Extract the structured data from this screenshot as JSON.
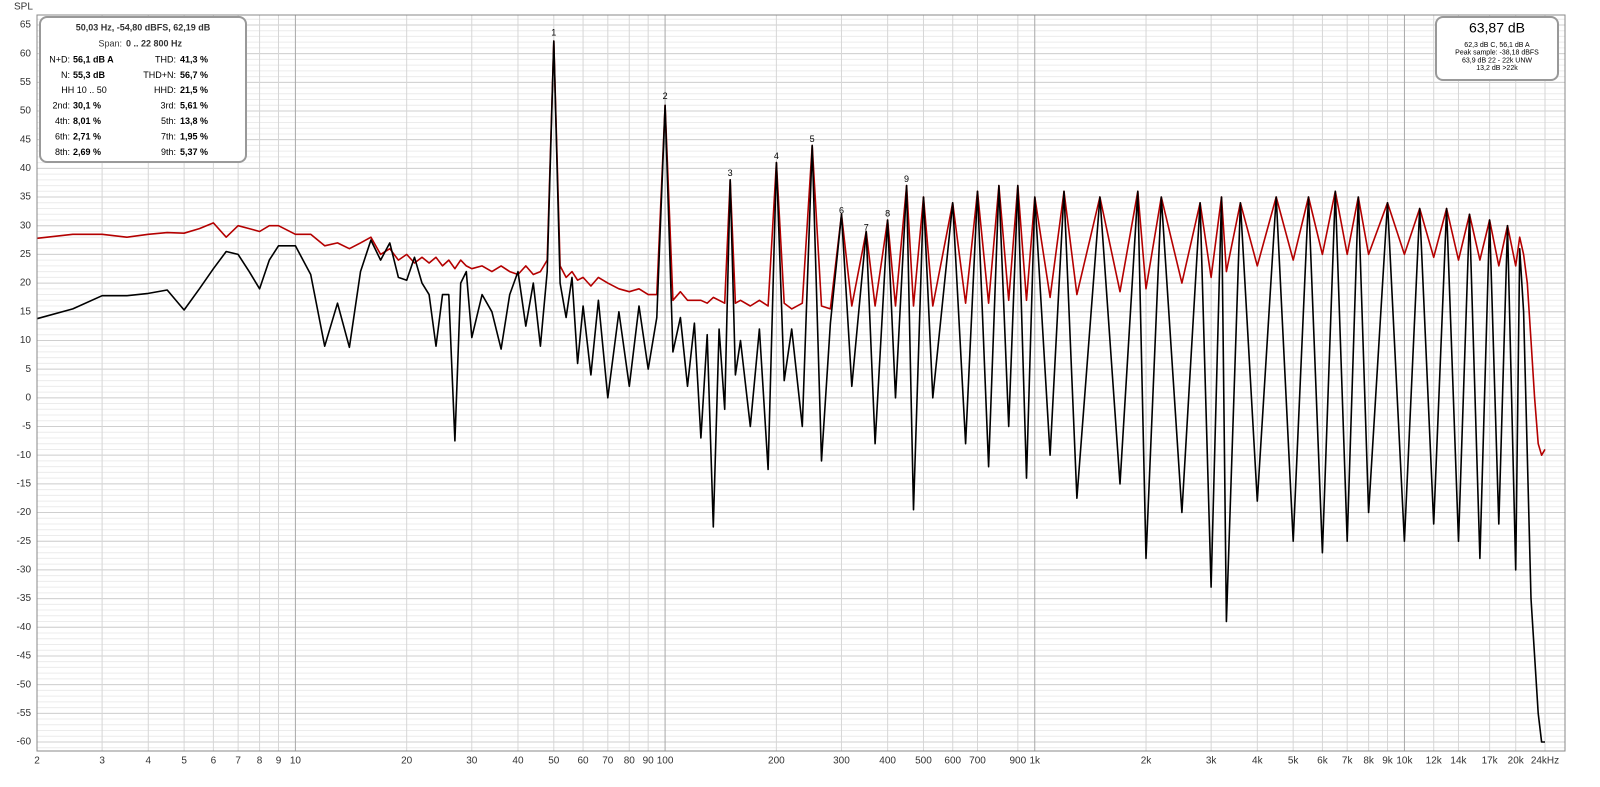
{
  "chart_data": {
    "type": "line",
    "y_axis_label": "SPL",
    "xlog": true,
    "grid": true,
    "minor_grid": true,
    "xlim": [
      2,
      24000
    ],
    "ylim": [
      -61.5,
      66.7
    ],
    "yticks": [
      65,
      60,
      55,
      50,
      45,
      40,
      35,
      30,
      25,
      20,
      15,
      10,
      5,
      0,
      -5,
      -10,
      -15,
      -20,
      -25,
      -30,
      -35,
      -40,
      -45,
      -50,
      -55,
      -60
    ],
    "xticks": [
      2,
      3,
      4,
      5,
      6,
      7,
      8,
      9,
      10,
      20,
      30,
      40,
      50,
      60,
      70,
      80,
      90,
      100,
      200,
      300,
      400,
      500,
      600,
      700,
      900,
      {
        "value": 1000,
        "label": "1k"
      },
      {
        "value": 2000,
        "label": "2k"
      },
      {
        "value": 3000,
        "label": "3k"
      },
      {
        "value": 4000,
        "label": "4k"
      },
      {
        "value": 5000,
        "label": "5k"
      },
      {
        "value": 6000,
        "label": "6k"
      },
      {
        "value": 7000,
        "label": "7k"
      },
      {
        "value": 8000,
        "label": "8k"
      },
      {
        "value": 9000,
        "label": "9k"
      },
      {
        "value": 10000,
        "label": "10k"
      },
      {
        "value": 12000,
        "label": "12k"
      },
      {
        "value": 14000,
        "label": "14k"
      },
      {
        "value": 17000,
        "label": "17k"
      },
      {
        "value": 20000,
        "label": "20k"
      },
      {
        "value": 24000,
        "label": "24kHz"
      }
    ],
    "x": [
      2,
      2.5,
      3,
      3.5,
      4,
      4.5,
      5,
      5.5,
      6,
      6.5,
      7,
      7.5,
      8,
      8.5,
      9,
      10,
      11,
      12,
      13,
      14,
      15,
      16,
      17,
      18,
      19,
      20,
      21,
      22,
      23,
      24,
      25,
      26,
      27,
      28,
      29,
      30,
      32,
      34,
      36,
      38,
      40,
      42,
      44,
      46,
      48,
      50,
      52,
      54,
      56,
      58,
      60,
      63,
      66,
      70,
      75,
      80,
      85,
      90,
      95,
      100,
      105,
      110,
      115,
      120,
      125,
      130,
      135,
      140,
      145,
      150,
      155,
      160,
      170,
      180,
      190,
      200,
      210,
      220,
      235,
      250,
      265,
      280,
      300,
      320,
      350,
      370,
      400,
      420,
      450,
      470,
      500,
      530,
      600,
      650,
      700,
      750,
      800,
      850,
      900,
      950,
      1000,
      1100,
      1200,
      1300,
      1500,
      1700,
      1900,
      2000,
      2200,
      2500,
      2800,
      3000,
      3200,
      3300,
      3600,
      4000,
      4500,
      5000,
      5500,
      6000,
      6500,
      7000,
      7500,
      8000,
      9000,
      10000,
      11000,
      12000,
      13000,
      14000,
      15000,
      16000,
      17000,
      18000,
      19000,
      20000,
      20500,
      21000,
      21500,
      22000,
      22500,
      23000,
      23500,
      24000
    ],
    "series": [
      {
        "color": "#000000",
        "values": [
          13.8,
          15.5,
          17.8,
          17.8,
          18.2,
          18.8,
          15.3,
          19,
          22.5,
          25.5,
          25,
          22,
          19,
          24,
          26.5,
          26.5,
          21.5,
          9,
          16.5,
          8.8,
          22,
          27.5,
          24,
          27,
          21,
          20.5,
          24.5,
          20,
          18,
          9,
          18,
          18,
          -7.5,
          20,
          22,
          10.5,
          18,
          15,
          8.5,
          18,
          22,
          12.5,
          20,
          9,
          22,
          62.2,
          20,
          14,
          21,
          6,
          16,
          4,
          17,
          0,
          15,
          2,
          16,
          5,
          14,
          51,
          8,
          14,
          2,
          13,
          -7,
          11,
          -22.5,
          12,
          -2,
          38,
          4,
          10,
          -5,
          12,
          -12.5,
          41,
          3,
          12,
          -5,
          44,
          -11,
          13,
          32,
          2,
          29,
          -8,
          31,
          0,
          37,
          -19.5,
          35,
          0,
          34,
          -8,
          36,
          -12,
          37,
          -5,
          37,
          -14,
          35,
          -10,
          36,
          -17.5,
          35,
          -15,
          36,
          -28,
          35,
          -20,
          34,
          -33,
          35,
          -39,
          34,
          -18,
          35,
          -25,
          35,
          -27,
          36,
          -25,
          35,
          -20,
          34,
          -25,
          33,
          -22,
          33,
          -25,
          32,
          -28,
          31,
          -22,
          30,
          -30,
          26,
          15,
          -10,
          -35,
          -45,
          -55,
          -60,
          -60
        ]
      },
      {
        "color": "#b40000",
        "values": [
          27.8,
          28.5,
          28.5,
          28,
          28.5,
          28.8,
          28.7,
          29.5,
          30.5,
          28,
          30,
          29.5,
          29,
          30,
          30,
          28.5,
          28.5,
          26.5,
          27,
          26,
          27,
          28,
          25,
          26,
          24,
          25,
          23.5,
          24.5,
          23.5,
          24.5,
          23,
          24,
          22.5,
          24,
          23,
          22.5,
          23,
          22,
          23,
          22,
          21.5,
          23,
          21.5,
          22,
          24,
          62.2,
          23,
          21,
          22,
          20.5,
          21,
          19.5,
          21,
          20,
          19,
          18.5,
          19,
          18,
          18,
          51,
          17,
          18.5,
          17,
          17,
          17,
          16.5,
          17.5,
          17,
          16.5,
          38,
          16.5,
          17,
          16,
          17,
          16,
          41,
          16.5,
          15.5,
          16.5,
          44,
          16,
          15.5,
          32,
          16,
          29,
          16,
          31,
          16,
          37,
          16,
          35,
          16,
          34,
          16.5,
          36,
          16.5,
          37,
          17,
          37,
          17,
          35,
          17.5,
          36,
          18,
          35,
          18.5,
          36,
          19,
          35,
          20,
          34,
          21,
          35,
          22,
          34,
          23,
          35,
          24,
          35,
          25,
          36,
          25,
          35,
          25,
          34,
          25,
          33,
          24.5,
          33,
          24,
          32,
          24,
          31,
          23,
          30,
          23,
          28,
          25,
          20,
          10,
          0,
          -8,
          -10,
          -9
        ]
      }
    ],
    "annotations": [
      {
        "text": "1",
        "x": 50,
        "y": 62.5
      },
      {
        "text": "2",
        "x": 100,
        "y": 51.5
      },
      {
        "text": "3",
        "x": 150,
        "y": 38
      },
      {
        "text": "4",
        "x": 200,
        "y": 41
      },
      {
        "text": "5",
        "x": 250,
        "y": 44
      },
      {
        "text": "6",
        "x": 300,
        "y": 31.5
      },
      {
        "text": "7",
        "x": 350,
        "y": 28.5
      },
      {
        "text": "8",
        "x": 400,
        "y": 31
      },
      {
        "text": "9",
        "x": 450,
        "y": 37
      }
    ]
  },
  "info_box": {
    "header": "50,03 Hz, -54,80 dBFS, 62,19 dB",
    "span_label": "Span:",
    "span": "0 .. 22 800 Hz",
    "rows": [
      [
        "N+D:",
        "56,1 dB A",
        "THD:",
        "41,3 %"
      ],
      [
        "N:",
        "55,3 dB",
        "THD+N:",
        "56,7 %"
      ],
      [
        "HH 10 .. 50",
        "",
        "HHD:",
        "21,5 %"
      ],
      [
        "2nd:",
        "30,1 %",
        "3rd:",
        "5,61 %"
      ],
      [
        "4th:",
        "8,01 %",
        "5th:",
        "13,8 %"
      ],
      [
        "6th:",
        "2,71 %",
        "7th:",
        "1,95 %"
      ],
      [
        "8th:",
        "2,69 %",
        "9th:",
        "5,37 %"
      ]
    ]
  },
  "level_box": {
    "level": "63,87 dB",
    "lines": [
      "62,3 dB C, 56,1 dB A",
      "Peak sample: -38,18 dBFS",
      "63,9 dB 22 - 22k UNW",
      "13,2 dB >22k"
    ]
  }
}
